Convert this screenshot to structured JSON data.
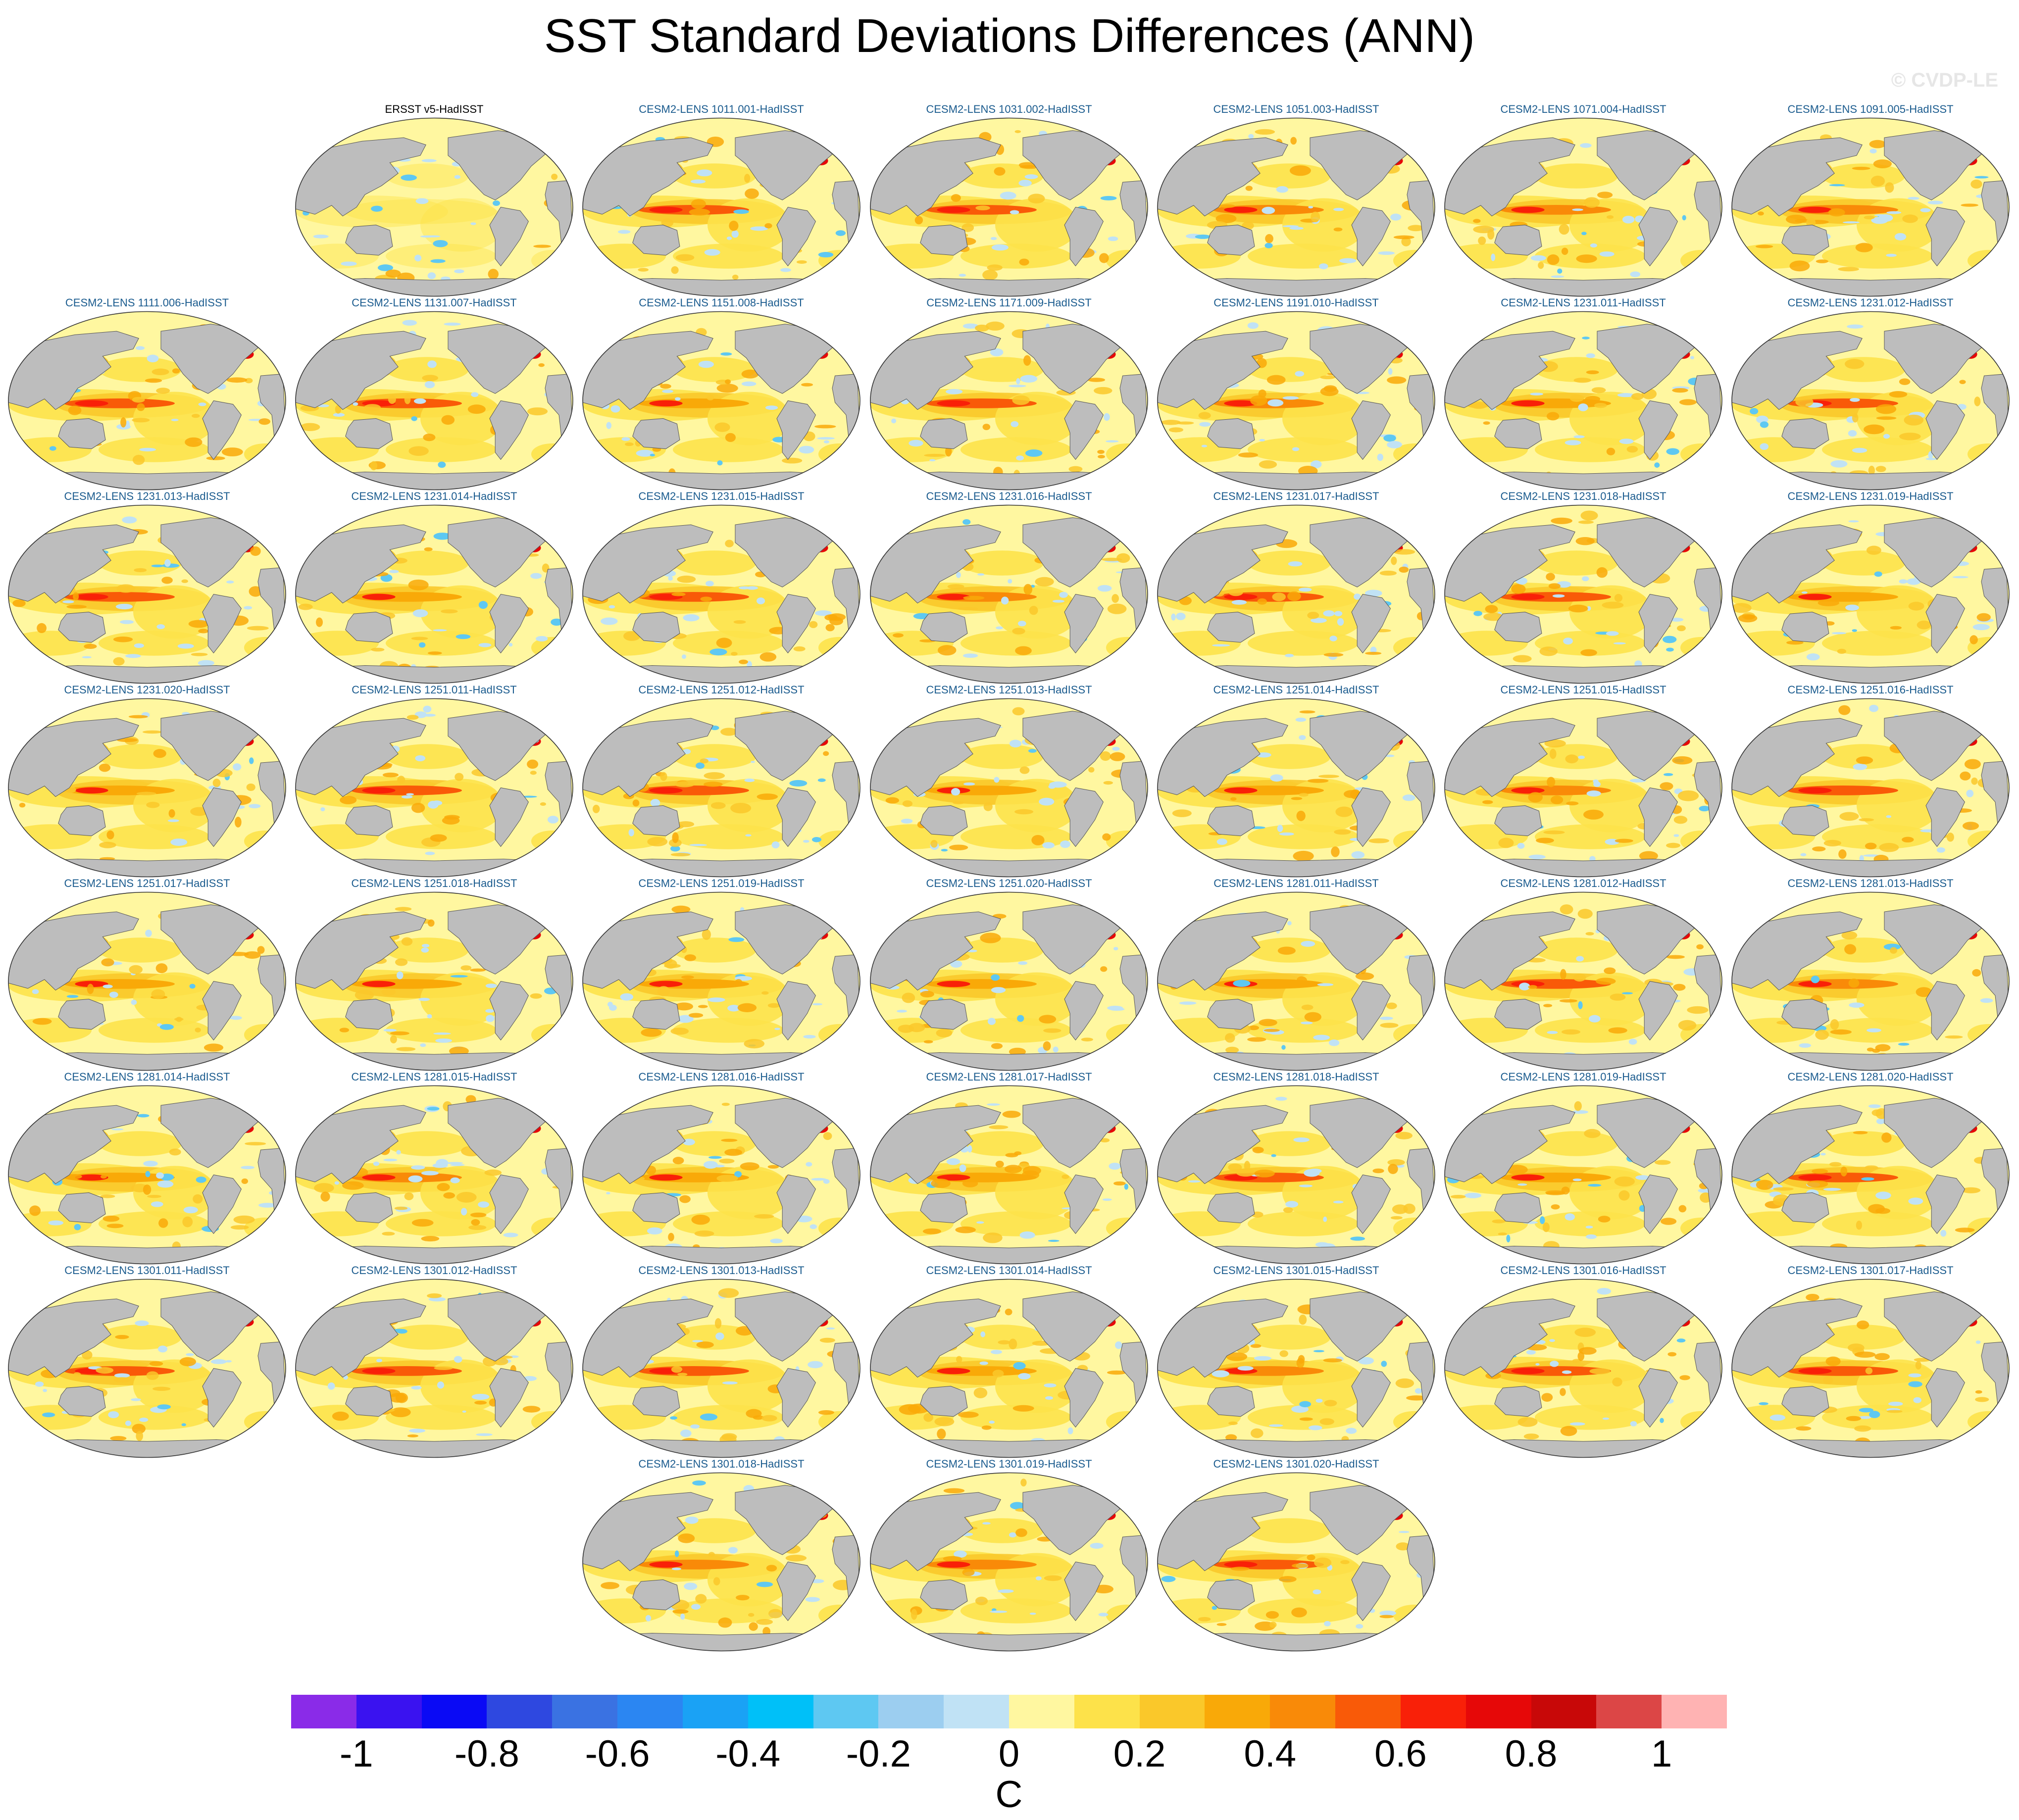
{
  "title": "SST Standard Deviations Differences (ANN)",
  "watermark": "© CVDP-LE",
  "colors": {
    "land": "#bdbdbd",
    "ocean_base": "#fff7a0",
    "coast": "#555555",
    "panel_title_model": "#1a5b8e",
    "panel_title_obs": "#000000"
  },
  "rows": [
    [
      "ERSST v5-HadISST",
      "CESM2-LENS 1011.001-HadISST",
      "CESM2-LENS 1031.002-HadISST",
      "CESM2-LENS 1051.003-HadISST",
      "CESM2-LENS 1071.004-HadISST",
      "CESM2-LENS 1091.005-HadISST"
    ],
    [
      "CESM2-LENS 1111.006-HadISST",
      "CESM2-LENS 1131.007-HadISST",
      "CESM2-LENS 1151.008-HadISST",
      "CESM2-LENS 1171.009-HadISST",
      "CESM2-LENS 1191.010-HadISST",
      "CESM2-LENS 1231.011-HadISST",
      "CESM2-LENS 1231.012-HadISST"
    ],
    [
      "CESM2-LENS 1231.013-HadISST",
      "CESM2-LENS 1231.014-HadISST",
      "CESM2-LENS 1231.015-HadISST",
      "CESM2-LENS 1231.016-HadISST",
      "CESM2-LENS 1231.017-HadISST",
      "CESM2-LENS 1231.018-HadISST",
      "CESM2-LENS 1231.019-HadISST"
    ],
    [
      "CESM2-LENS 1231.020-HadISST",
      "CESM2-LENS 1251.011-HadISST",
      "CESM2-LENS 1251.012-HadISST",
      "CESM2-LENS 1251.013-HadISST",
      "CESM2-LENS 1251.014-HadISST",
      "CESM2-LENS 1251.015-HadISST",
      "CESM2-LENS 1251.016-HadISST"
    ],
    [
      "CESM2-LENS 1251.017-HadISST",
      "CESM2-LENS 1251.018-HadISST",
      "CESM2-LENS 1251.019-HadISST",
      "CESM2-LENS 1251.020-HadISST",
      "CESM2-LENS 1281.011-HadISST",
      "CESM2-LENS 1281.012-HadISST",
      "CESM2-LENS 1281.013-HadISST"
    ],
    [
      "CESM2-LENS 1281.014-HadISST",
      "CESM2-LENS 1281.015-HadISST",
      "CESM2-LENS 1281.016-HadISST",
      "CESM2-LENS 1281.017-HadISST",
      "CESM2-LENS 1281.018-HadISST",
      "CESM2-LENS 1281.019-HadISST",
      "CESM2-LENS 1281.020-HadISST"
    ],
    [
      "CESM2-LENS 1301.011-HadISST",
      "CESM2-LENS 1301.012-HadISST",
      "CESM2-LENS 1301.013-HadISST",
      "CESM2-LENS 1301.014-HadISST",
      "CESM2-LENS 1301.015-HadISST",
      "CESM2-LENS 1301.016-HadISST",
      "CESM2-LENS 1301.017-HadISST"
    ],
    [
      "CESM2-LENS 1301.018-HadISST",
      "CESM2-LENS 1301.019-HadISST",
      "CESM2-LENS 1301.020-HadISST"
    ]
  ],
  "colorbar": {
    "unit": "C",
    "tick_labels": [
      "-1",
      "-0.8",
      "-0.6",
      "-0.4",
      "-0.2",
      "0",
      "0.2",
      "0.4",
      "0.6",
      "0.8",
      "1"
    ],
    "colors": [
      "#8a2be8",
      "#3a12f0",
      "#0a0af5",
      "#2e48e0",
      "#3a72e2",
      "#2b86f2",
      "#1aa2f5",
      "#00c0f8",
      "#5ec8f2",
      "#9ccef0",
      "#c0e2f5",
      "#fff7a0",
      "#fde24a",
      "#fac82a",
      "#f9a908",
      "#f98a08",
      "#f95a08",
      "#f92008",
      "#e60808",
      "#c80808",
      "#dc4646",
      "#ffb3b3"
    ]
  }
}
